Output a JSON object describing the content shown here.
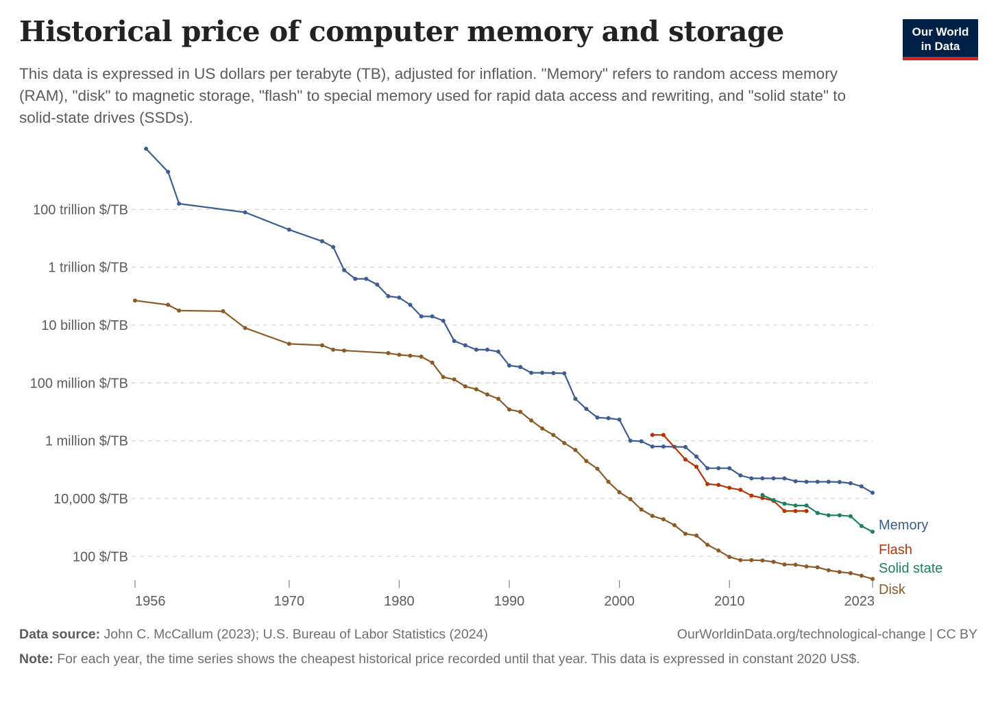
{
  "title": "Historical price of computer memory and storage",
  "subtitle": "This data is expressed in US dollars per terabyte (TB), adjusted for inflation. \"Memory\" refers to random access memory (RAM), \"disk\" to magnetic storage, \"flash\" to special memory used for rapid data access and rewriting, and \"solid state\" to solid-state drives (SSDs).",
  "logo": {
    "line1": "Our World",
    "line2": "in Data"
  },
  "footer": {
    "source_label": "Data source:",
    "source_text": "John C. McCallum (2023); U.S. Bureau of Labor Statistics (2024)",
    "site": "OurWorldinData.org/technological-change | CC BY",
    "note_label": "Note:",
    "note_text": "For each year, the time series shows the cheapest historical price recorded until that year. This data is expressed in constant 2020 US$."
  },
  "chart_data": {
    "type": "line",
    "y_scale": "log",
    "grid": "horizontal dashed",
    "legend": "labels at line ends (right)",
    "xlim": [
      1956,
      2023
    ],
    "ylim_log10": [
      1.2,
      16.5
    ],
    "x_ticks": [
      1956,
      1970,
      1980,
      1990,
      2000,
      2010,
      2023
    ],
    "y_ticks": [
      {
        "value": 100000000000000.0,
        "label": "100 trillion $/TB"
      },
      {
        "value": 1000000000000.0,
        "label": "1 trillion $/TB"
      },
      {
        "value": 10000000000.0,
        "label": "10 billion $/TB"
      },
      {
        "value": 100000000.0,
        "label": "100 million $/TB"
      },
      {
        "value": 1000000.0,
        "label": "1 million $/TB"
      },
      {
        "value": 10000.0,
        "label": "10,000 $/TB"
      },
      {
        "value": 100.0,
        "label": "100 $/TB"
      }
    ],
    "series": [
      {
        "name": "Memory",
        "color": "#3c5d91",
        "points": [
          [
            1957,
            16.1
          ],
          [
            1959,
            15.3
          ],
          [
            1960,
            14.2
          ],
          [
            1966,
            13.9
          ],
          [
            1970,
            13.3
          ],
          [
            1973,
            12.9
          ],
          [
            1974,
            12.7
          ],
          [
            1975,
            11.9
          ],
          [
            1976,
            11.6
          ],
          [
            1977,
            11.6
          ],
          [
            1978,
            11.4
          ],
          [
            1979,
            11.0
          ],
          [
            1980,
            10.95
          ],
          [
            1981,
            10.7
          ],
          [
            1982,
            10.3
          ],
          [
            1983,
            10.3
          ],
          [
            1984,
            10.15
          ],
          [
            1985,
            9.45
          ],
          [
            1986,
            9.3
          ],
          [
            1987,
            9.15
          ],
          [
            1988,
            9.15
          ],
          [
            1989,
            9.08
          ],
          [
            1990,
            8.6
          ],
          [
            1991,
            8.55
          ],
          [
            1992,
            8.35
          ],
          [
            1993,
            8.35
          ],
          [
            1994,
            8.34
          ],
          [
            1995,
            8.33
          ],
          [
            1996,
            7.45
          ],
          [
            1997,
            7.1
          ],
          [
            1998,
            6.8
          ],
          [
            1999,
            6.78
          ],
          [
            2000,
            6.73
          ],
          [
            2001,
            6.0
          ],
          [
            2002,
            5.98
          ],
          [
            2003,
            5.8
          ],
          [
            2004,
            5.8
          ],
          [
            2005,
            5.79
          ],
          [
            2006,
            5.78
          ],
          [
            2007,
            5.45
          ],
          [
            2008,
            5.05
          ],
          [
            2009,
            5.05
          ],
          [
            2010,
            5.05
          ],
          [
            2011,
            4.8
          ],
          [
            2012,
            4.7
          ],
          [
            2013,
            4.7
          ],
          [
            2014,
            4.7
          ],
          [
            2015,
            4.7
          ],
          [
            2016,
            4.6
          ],
          [
            2017,
            4.58
          ],
          [
            2018,
            4.58
          ],
          [
            2019,
            4.58
          ],
          [
            2020,
            4.57
          ],
          [
            2021,
            4.53
          ],
          [
            2022,
            4.42
          ],
          [
            2023,
            4.2
          ]
        ]
      },
      {
        "name": "Flash",
        "color": "#b13507",
        "points": [
          [
            2003,
            6.2
          ],
          [
            2004,
            6.2
          ],
          [
            2006,
            5.35
          ],
          [
            2007,
            5.1
          ],
          [
            2008,
            4.5
          ],
          [
            2009,
            4.47
          ],
          [
            2010,
            4.37
          ],
          [
            2011,
            4.3
          ],
          [
            2012,
            4.1
          ],
          [
            2013,
            4.02
          ],
          [
            2014,
            3.92
          ],
          [
            2015,
            3.57
          ],
          [
            2016,
            3.57
          ],
          [
            2017,
            3.57
          ]
        ]
      },
      {
        "name": "Solid state",
        "color": "#1f8060",
        "points": [
          [
            2013,
            4.12
          ],
          [
            2014,
            3.95
          ],
          [
            2015,
            3.82
          ],
          [
            2016,
            3.76
          ],
          [
            2017,
            3.76
          ],
          [
            2018,
            3.5
          ],
          [
            2019,
            3.42
          ],
          [
            2020,
            3.42
          ],
          [
            2021,
            3.39
          ],
          [
            2022,
            3.05
          ],
          [
            2023,
            2.85
          ]
        ]
      },
      {
        "name": "Disk",
        "color": "#8b5a27",
        "points": [
          [
            1956,
            10.85
          ],
          [
            1959,
            10.7
          ],
          [
            1960,
            10.5
          ],
          [
            1964,
            10.48
          ],
          [
            1966,
            9.9
          ],
          [
            1970,
            9.35
          ],
          [
            1973,
            9.3
          ],
          [
            1974,
            9.15
          ],
          [
            1975,
            9.12
          ],
          [
            1979,
            9.03
          ],
          [
            1980,
            8.97
          ],
          [
            1981,
            8.94
          ],
          [
            1982,
            8.91
          ],
          [
            1983,
            8.7
          ],
          [
            1984,
            8.2
          ],
          [
            1985,
            8.12
          ],
          [
            1986,
            7.88
          ],
          [
            1987,
            7.78
          ],
          [
            1988,
            7.6
          ],
          [
            1989,
            7.45
          ],
          [
            1990,
            7.08
          ],
          [
            1991,
            7.0
          ],
          [
            1992,
            6.7
          ],
          [
            1993,
            6.42
          ],
          [
            1994,
            6.2
          ],
          [
            1995,
            5.92
          ],
          [
            1996,
            5.68
          ],
          [
            1997,
            5.3
          ],
          [
            1998,
            5.03
          ],
          [
            1999,
            4.58
          ],
          [
            2000,
            4.22
          ],
          [
            2001,
            3.98
          ],
          [
            2002,
            3.62
          ],
          [
            2003,
            3.4
          ],
          [
            2004,
            3.28
          ],
          [
            2005,
            3.08
          ],
          [
            2006,
            2.78
          ],
          [
            2007,
            2.72
          ],
          [
            2008,
            2.4
          ],
          [
            2009,
            2.2
          ],
          [
            2010,
            1.98
          ],
          [
            2011,
            1.87
          ],
          [
            2012,
            1.87
          ],
          [
            2013,
            1.86
          ],
          [
            2014,
            1.81
          ],
          [
            2015,
            1.72
          ],
          [
            2016,
            1.71
          ],
          [
            2017,
            1.65
          ],
          [
            2018,
            1.62
          ],
          [
            2019,
            1.52
          ],
          [
            2020,
            1.46
          ],
          [
            2021,
            1.42
          ],
          [
            2022,
            1.33
          ],
          [
            2023,
            1.22
          ]
        ]
      }
    ]
  }
}
